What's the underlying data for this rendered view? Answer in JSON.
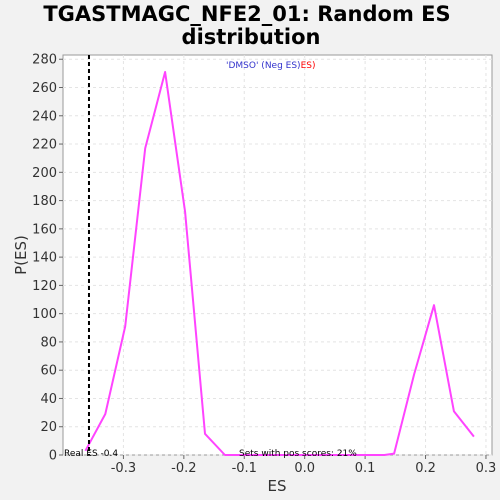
{
  "chart_data": {
    "type": "line",
    "title_line1": "TGASTMAGC_NFE2_01: Random ES",
    "title_line2": "distribution",
    "xlabel": "ES",
    "ylabel": "P(ES)",
    "xlim": [
      -0.4,
      0.31
    ],
    "ylim": [
      0,
      283
    ],
    "xticks": [
      -0.3,
      -0.2,
      -0.1,
      0.0,
      0.1,
      0.2,
      0.3
    ],
    "xtick_labels": [
      "-0.3",
      "-0.2",
      "-0.1",
      "0.0",
      "0.1",
      "0.2",
      "0.3"
    ],
    "yticks": [
      0,
      20,
      40,
      60,
      80,
      100,
      120,
      140,
      160,
      180,
      200,
      220,
      240,
      260,
      280
    ],
    "grid": true,
    "series": [
      {
        "color": "#ff44ff",
        "x": [
          -0.363,
          -0.33,
          -0.297,
          -0.264,
          -0.231,
          -0.198,
          -0.165,
          -0.132,
          -0.099,
          -0.066,
          -0.033,
          0.0,
          0.033,
          0.066,
          0.099,
          0.132,
          0.148,
          0.181,
          0.214,
          0.247,
          0.28
        ],
        "y": [
          3,
          29,
          91,
          217,
          271,
          172,
          15,
          0,
          0,
          0,
          0,
          0,
          0,
          0,
          0,
          0,
          1,
          57,
          106,
          31,
          13
        ]
      }
    ],
    "legend": {
      "placement": "top-center",
      "part1": "'DMSO' (Neg ES)",
      "part1_color": "#3333cc",
      "part2": "ES)",
      "part2_color": "#ff0000"
    },
    "real_es": {
      "value": -0.357,
      "label": "Real ES -0.4"
    },
    "annotation": "Sets with pos scores: 21%"
  }
}
